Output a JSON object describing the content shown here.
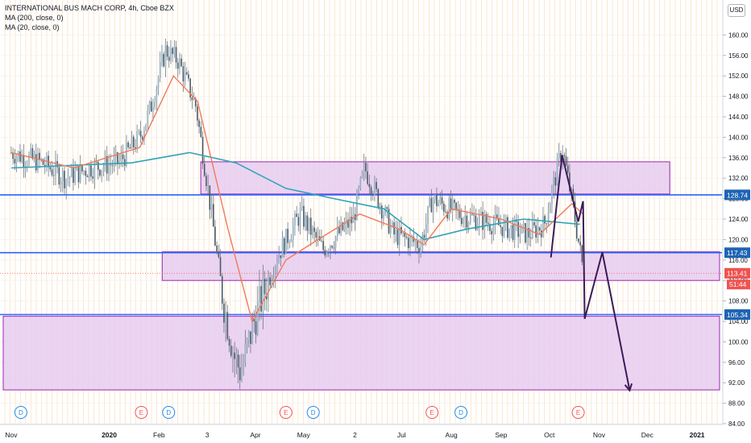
{
  "header": {
    "symbol_line": "INTERNATIONAL BUS MACH CORP, 4h, Cboe BZX",
    "indicators": [
      "MA (200, close, 0)",
      "MA (20, close, 0)"
    ],
    "currency": "USD"
  },
  "colors": {
    "grid": "#fbe7cf",
    "zone_fill": "#e6cdee",
    "zone_stroke": "#9c27b0",
    "hline": "#2962ff",
    "hline_label_bg": "#1e64b4",
    "price_label_bg": "#ef5350",
    "countdown_bg": "#ef5350",
    "ma200": "#2fa3b8",
    "ma20": "#f07a5a",
    "projection": "#3b1a57",
    "candle": "#4a5a66",
    "event_blue": "#1e88e5",
    "event_red": "#ef5350"
  },
  "chart_data": {
    "type": "candlestick",
    "x_ticks": [
      "Nov",
      "2020",
      "Feb",
      "3",
      "Apr",
      "May",
      "2",
      "Jul",
      "Aug",
      "Sep",
      "Oct",
      "Nov",
      "Dec",
      "2021"
    ],
    "y_ticks": [
      84,
      88,
      92,
      96,
      100,
      104,
      108,
      112,
      116,
      120,
      124,
      128,
      132,
      136,
      140,
      144,
      148,
      152,
      156,
      160
    ],
    "ylim": [
      84,
      164
    ],
    "price_path": [
      {
        "t": "2019-11-01",
        "p": 137
      },
      {
        "t": "2019-11-20",
        "p": 135
      },
      {
        "t": "2019-12-05",
        "p": 132
      },
      {
        "t": "2019-12-20",
        "p": 134
      },
      {
        "t": "2020-01-07",
        "p": 135
      },
      {
        "t": "2020-01-20",
        "p": 140
      },
      {
        "t": "2020-01-27",
        "p": 146
      },
      {
        "t": "2020-02-05",
        "p": 157
      },
      {
        "t": "2020-02-13",
        "p": 155
      },
      {
        "t": "2020-02-24",
        "p": 146
      },
      {
        "t": "2020-03-02",
        "p": 131
      },
      {
        "t": "2020-03-12",
        "p": 108
      },
      {
        "t": "2020-03-19",
        "p": 97
      },
      {
        "t": "2020-03-23",
        "p": 94
      },
      {
        "t": "2020-04-01",
        "p": 105
      },
      {
        "t": "2020-04-15",
        "p": 117
      },
      {
        "t": "2020-04-29",
        "p": 125
      },
      {
        "t": "2020-05-13",
        "p": 118
      },
      {
        "t": "2020-06-01",
        "p": 124
      },
      {
        "t": "2020-06-08",
        "p": 134
      },
      {
        "t": "2020-06-26",
        "p": 121
      },
      {
        "t": "2020-07-13",
        "p": 119
      },
      {
        "t": "2020-07-20",
        "p": 128
      },
      {
        "t": "2020-08-05",
        "p": 125
      },
      {
        "t": "2020-08-28",
        "p": 123
      },
      {
        "t": "2020-09-18",
        "p": 121
      },
      {
        "t": "2020-09-28",
        "p": 123
      },
      {
        "t": "2020-10-09",
        "p": 138
      },
      {
        "t": "2020-10-16",
        "p": 126
      },
      {
        "t": "2020-10-22",
        "p": 114
      }
    ],
    "ma200_path": [
      {
        "t": "2019-11-01",
        "p": 134
      },
      {
        "t": "2020-01-15",
        "p": 135
      },
      {
        "t": "2020-02-20",
        "p": 137
      },
      {
        "t": "2020-03-20",
        "p": 135
      },
      {
        "t": "2020-04-20",
        "p": 130
      },
      {
        "t": "2020-05-20",
        "p": 128
      },
      {
        "t": "2020-06-20",
        "p": 126
      },
      {
        "t": "2020-07-15",
        "p": 120
      },
      {
        "t": "2020-08-10",
        "p": 122
      },
      {
        "t": "2020-09-15",
        "p": 124
      },
      {
        "t": "2020-10-20",
        "p": 123
      }
    ],
    "ma20_path": [
      {
        "t": "2019-11-01",
        "p": 137
      },
      {
        "t": "2019-12-10",
        "p": 134
      },
      {
        "t": "2020-01-20",
        "p": 138
      },
      {
        "t": "2020-02-10",
        "p": 152
      },
      {
        "t": "2020-02-25",
        "p": 147
      },
      {
        "t": "2020-03-15",
        "p": 122
      },
      {
        "t": "2020-03-30",
        "p": 104
      },
      {
        "t": "2020-04-20",
        "p": 116
      },
      {
        "t": "2020-05-10",
        "p": 120
      },
      {
        "t": "2020-06-05",
        "p": 125
      },
      {
        "t": "2020-06-30",
        "p": 122
      },
      {
        "t": "2020-07-15",
        "p": 119
      },
      {
        "t": "2020-08-01",
        "p": 126
      },
      {
        "t": "2020-09-01",
        "p": 124
      },
      {
        "t": "2020-09-25",
        "p": 121
      },
      {
        "t": "2020-10-15",
        "p": 127
      },
      {
        "t": "2020-10-22",
        "p": 125
      }
    ],
    "horizontal_lines": [
      {
        "price": 128.74,
        "label": "128.74"
      },
      {
        "price": 117.43,
        "label": "117.43"
      },
      {
        "price": 105.34,
        "label": "105.34"
      }
    ],
    "zones": [
      {
        "from": "2020-02-27",
        "to": "2020-12-15",
        "top": 135.2,
        "bottom": 128.9
      },
      {
        "from": "2020-02-03",
        "to": "2021-01-15",
        "top": 117.6,
        "bottom": 112.0
      },
      {
        "from": "2019-10-27",
        "to": "2021-01-15",
        "top": 105.0,
        "bottom": 90.6
      }
    ],
    "projection": [
      {
        "t": "2020-10-02",
        "p": 116.5
      },
      {
        "t": "2020-10-09",
        "p": 136.5
      },
      {
        "t": "2020-10-19",
        "p": 123.5
      },
      {
        "t": "2020-10-22",
        "p": 127.5
      },
      {
        "t": "2020-10-23",
        "p": 104.5
      },
      {
        "t": "2020-11-03",
        "p": 117.5
      },
      {
        "t": "2020-11-20",
        "p": 90.5
      }
    ],
    "last_price": {
      "value": 113.41,
      "label": "113.41",
      "countdown": "51:44"
    },
    "events": [
      {
        "t": "2019-11-07",
        "label": "D",
        "color": "blue"
      },
      {
        "t": "2020-01-21",
        "label": "E",
        "color": "red"
      },
      {
        "t": "2020-02-07",
        "label": "D",
        "color": "blue"
      },
      {
        "t": "2020-04-20",
        "label": "E",
        "color": "red"
      },
      {
        "t": "2020-05-07",
        "label": "D",
        "color": "blue"
      },
      {
        "t": "2020-07-20",
        "label": "E",
        "color": "red"
      },
      {
        "t": "2020-08-07",
        "label": "D",
        "color": "blue"
      },
      {
        "t": "2020-10-19",
        "label": "E",
        "color": "red"
      }
    ]
  }
}
